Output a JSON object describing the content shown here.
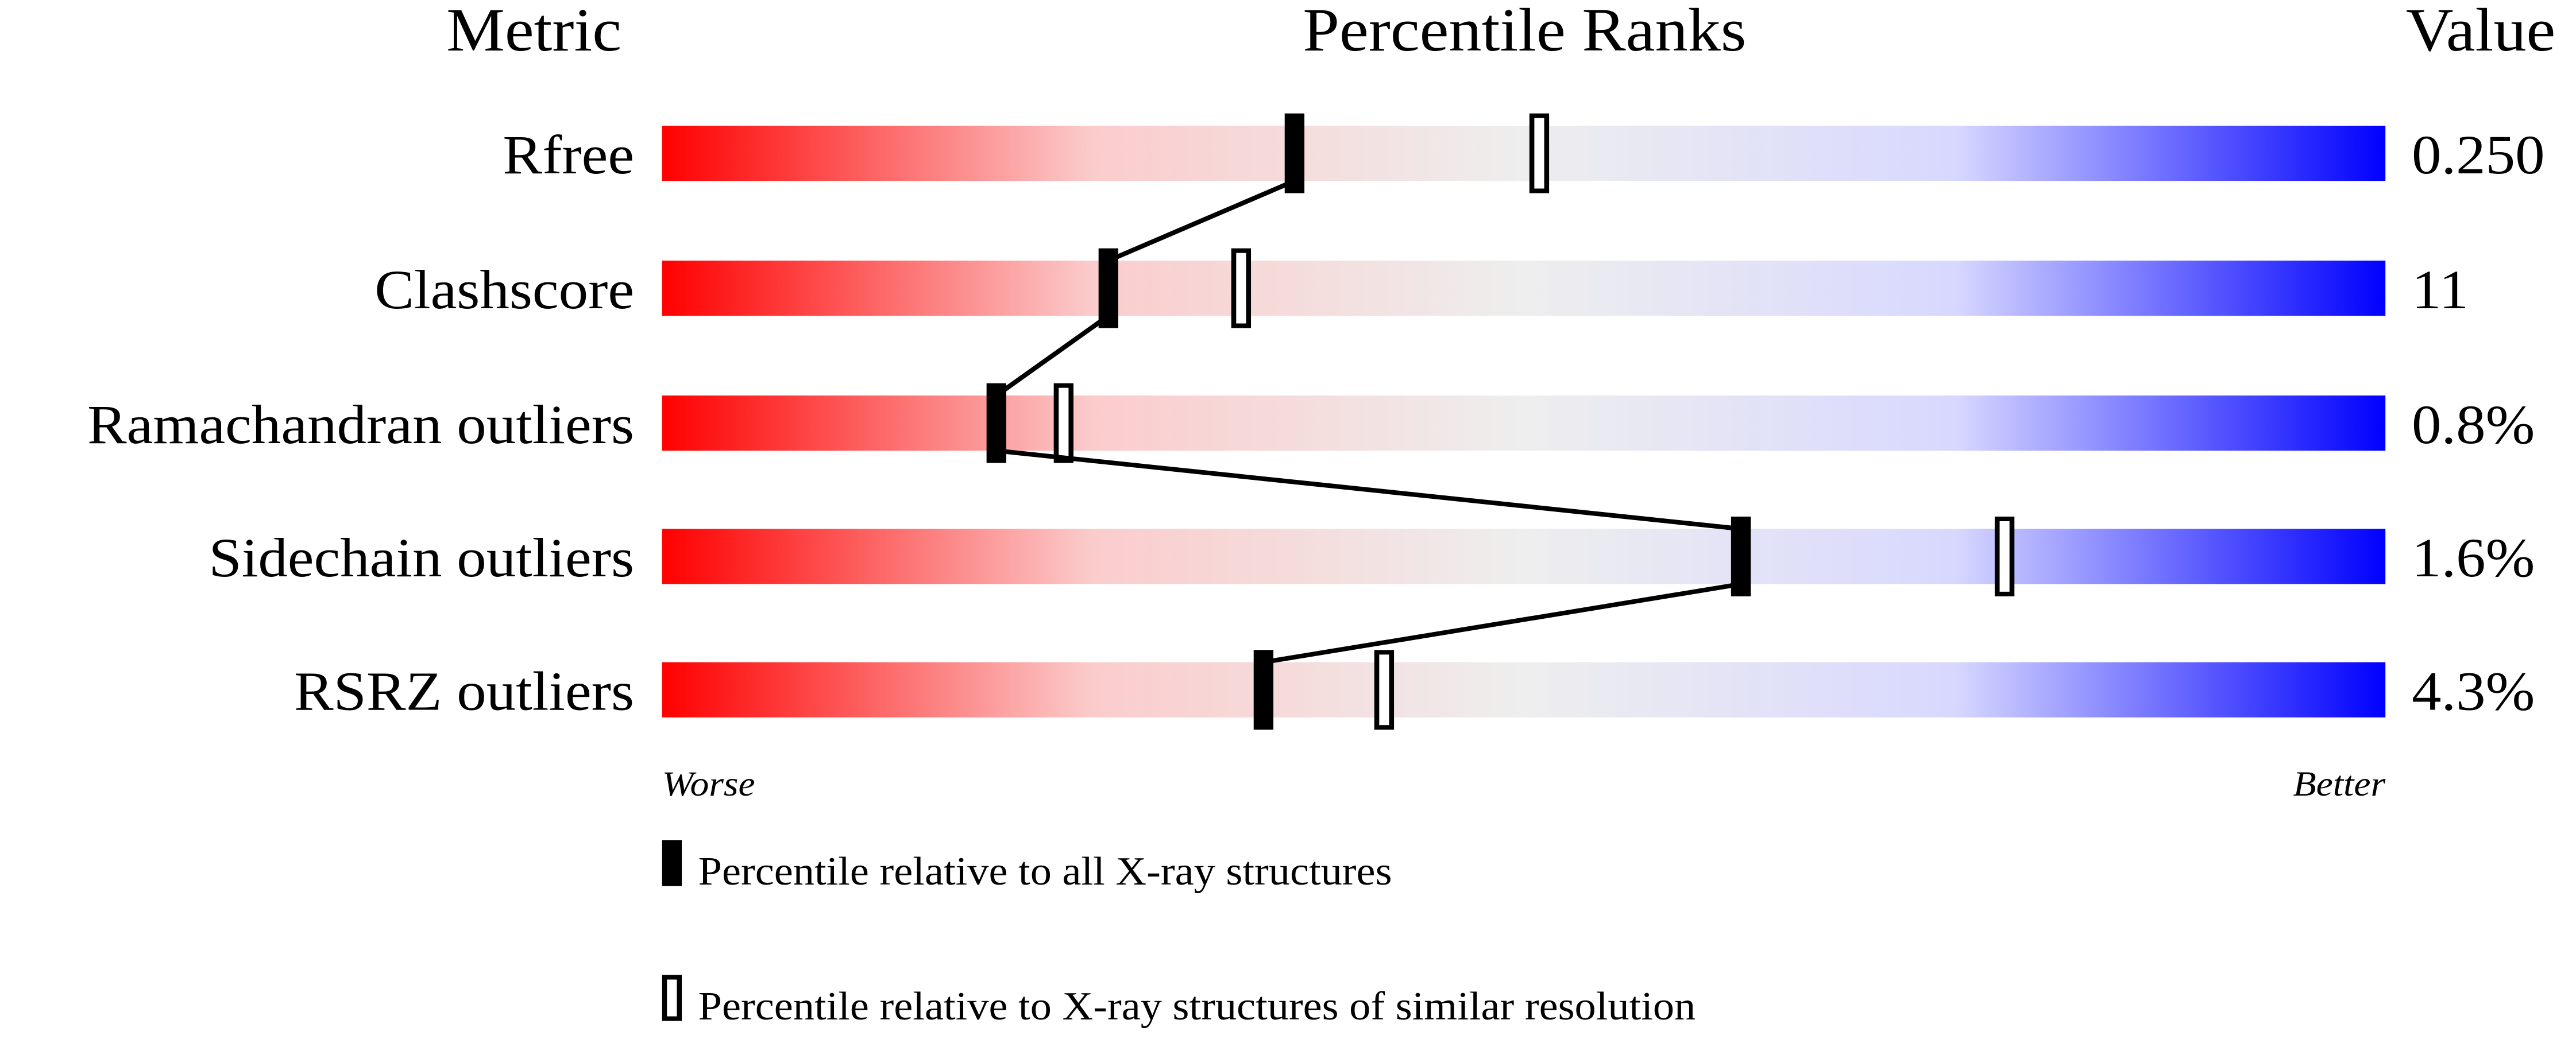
{
  "chart_data": {
    "type": "percentile-bar",
    "headers": {
      "metric": "Metric",
      "ranks": "Percentile Ranks",
      "value": "Value"
    },
    "xlim": [
      0,
      100
    ],
    "axis_labels": {
      "left": "Worse",
      "right": "Better"
    },
    "gradient_colors": [
      "#ff0000",
      "#fbcccc",
      "#eeeeee",
      "#d8d8ff",
      "#0000ff"
    ],
    "rows": [
      {
        "metric": "Rfree",
        "value": "0.250",
        "percentile_all": 36.7,
        "percentile_similar": 50.9
      },
      {
        "metric": "Clashscore",
        "value": "11",
        "percentile_all": 25.9,
        "percentile_similar": 33.6
      },
      {
        "metric": "Ramachandran outliers",
        "value": "0.8%",
        "percentile_all": 19.4,
        "percentile_similar": 23.3
      },
      {
        "metric": "Sidechain outliers",
        "value": "1.6%",
        "percentile_all": 62.6,
        "percentile_similar": 77.9
      },
      {
        "metric": "RSRZ outliers",
        "value": "4.3%",
        "percentile_all": 34.9,
        "percentile_similar": 41.9
      }
    ],
    "legend": [
      {
        "marker": "filled",
        "label": "Percentile relative to all X-ray structures"
      },
      {
        "marker": "open",
        "label": "Percentile relative to X-ray structures of similar resolution"
      }
    ]
  }
}
